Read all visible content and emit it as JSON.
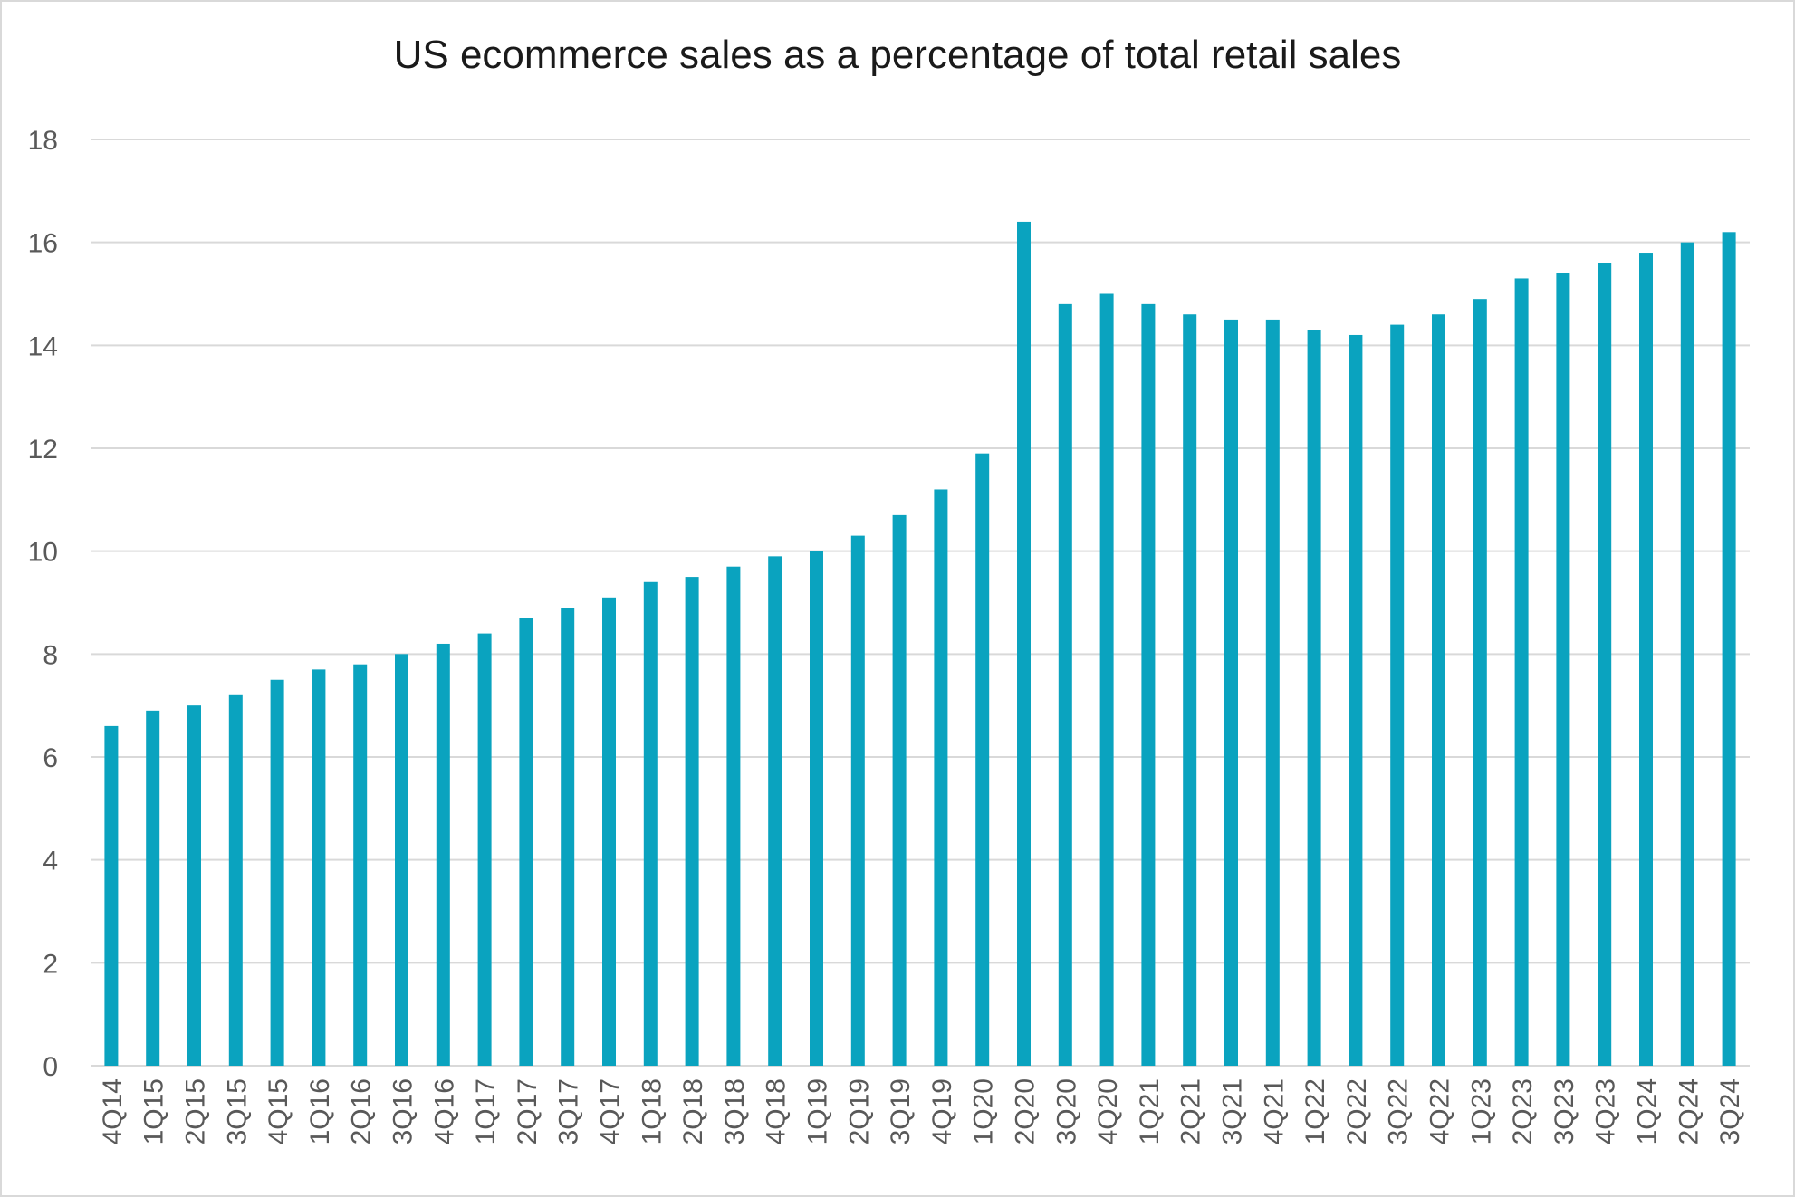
{
  "chart_data": {
    "type": "bar",
    "title": "US ecommerce sales as a percentage of total retail sales",
    "xlabel": "",
    "ylabel": "",
    "ylim": [
      0,
      18
    ],
    "yticks": [
      0,
      2,
      4,
      6,
      8,
      10,
      12,
      14,
      16,
      18
    ],
    "grid": true,
    "legend": "none",
    "bar_color": "#0aa3bf",
    "categories": [
      "4Q14",
      "1Q15",
      "2Q15",
      "3Q15",
      "4Q15",
      "1Q16",
      "2Q16",
      "3Q16",
      "4Q16",
      "1Q17",
      "2Q17",
      "3Q17",
      "4Q17",
      "1Q18",
      "2Q18",
      "3Q18",
      "4Q18",
      "1Q19",
      "2Q19",
      "3Q19",
      "4Q19",
      "1Q20",
      "2Q20",
      "3Q20",
      "4Q20",
      "1Q21",
      "2Q21",
      "3Q21",
      "4Q21",
      "1Q22",
      "2Q22",
      "3Q22",
      "4Q22",
      "1Q23",
      "2Q23",
      "3Q23",
      "4Q23",
      "1Q24",
      "2Q24",
      "3Q24"
    ],
    "values": [
      6.6,
      6.9,
      7.0,
      7.2,
      7.5,
      7.7,
      7.8,
      8.0,
      8.2,
      8.4,
      8.7,
      8.9,
      9.1,
      9.4,
      9.5,
      9.7,
      9.9,
      10.0,
      10.3,
      10.7,
      11.2,
      11.9,
      16.4,
      14.8,
      15.0,
      14.8,
      14.6,
      14.5,
      14.5,
      14.3,
      14.2,
      14.4,
      14.6,
      14.9,
      15.3,
      15.4,
      15.6,
      15.8,
      16.0,
      16.2
    ]
  }
}
